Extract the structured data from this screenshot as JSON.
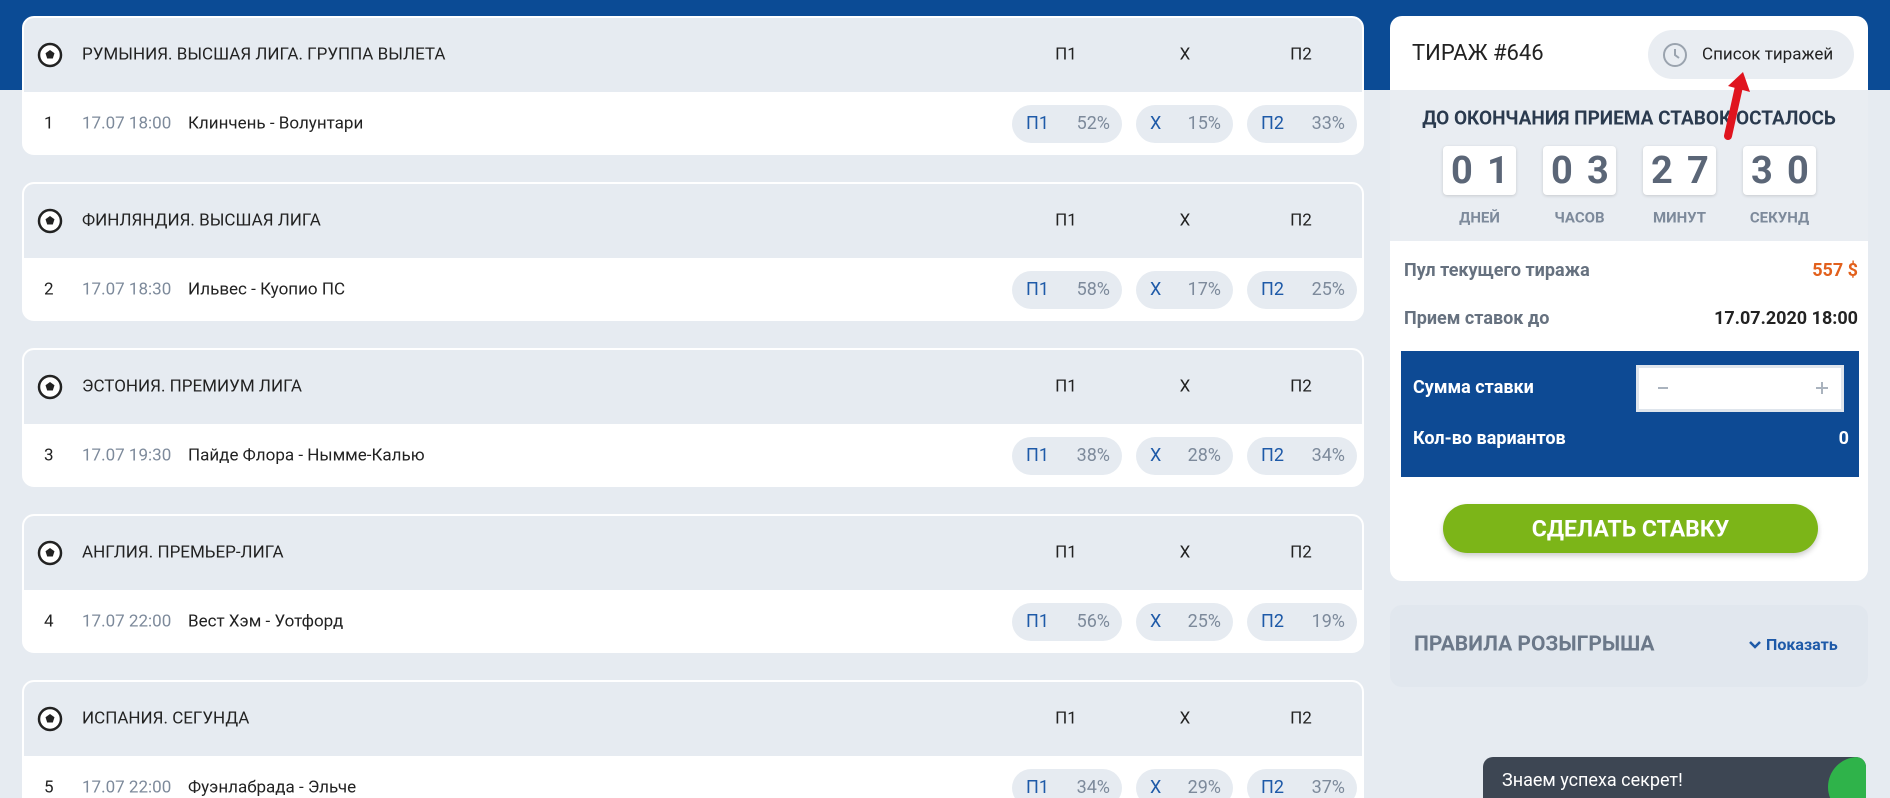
{
  "column_headers": [
    "П1",
    "X",
    "П2"
  ],
  "matches": [
    {
      "league": "РУМЫНИЯ. ВЫСШАЯ ЛИГА. ГРУППА ВЫЛЕТА",
      "number": "1",
      "date": "17.07 18:00",
      "teams": "Клинчень - Волунтари",
      "outcomes": [
        {
          "label": "П1",
          "percent": "52%"
        },
        {
          "label": "X",
          "percent": "15%"
        },
        {
          "label": "П2",
          "percent": "33%"
        }
      ]
    },
    {
      "league": "ФИНЛЯНДИЯ. ВЫСШАЯ ЛИГА",
      "number": "2",
      "date": "17.07 18:30",
      "teams": "Ильвес - Куопио ПС",
      "outcomes": [
        {
          "label": "П1",
          "percent": "58%"
        },
        {
          "label": "X",
          "percent": "17%"
        },
        {
          "label": "П2",
          "percent": "25%"
        }
      ]
    },
    {
      "league": "ЭСТОНИЯ. ПРЕМИУМ ЛИГА",
      "number": "3",
      "date": "17.07 19:30",
      "teams": "Пайде Флора - Нымме-Калью",
      "outcomes": [
        {
          "label": "П1",
          "percent": "38%"
        },
        {
          "label": "X",
          "percent": "28%"
        },
        {
          "label": "П2",
          "percent": "34%"
        }
      ]
    },
    {
      "league": "АНГЛИЯ. ПРЕМЬЕР-ЛИГА",
      "number": "4",
      "date": "17.07 22:00",
      "teams": "Вест Хэм - Уотфорд",
      "outcomes": [
        {
          "label": "П1",
          "percent": "56%"
        },
        {
          "label": "X",
          "percent": "25%"
        },
        {
          "label": "П2",
          "percent": "19%"
        }
      ]
    },
    {
      "league": "ИСПАНИЯ. СЕГУНДА",
      "number": "5",
      "date": "17.07 22:00",
      "teams": "Фуэнлабрада - Эльче",
      "outcomes": [
        {
          "label": "П1",
          "percent": "34%"
        },
        {
          "label": "X",
          "percent": "29%"
        },
        {
          "label": "П2",
          "percent": "37%"
        }
      ]
    }
  ],
  "draw": {
    "title": "ТИРАЖ #646",
    "history_button": "Список тиражей",
    "countdown_title": "ДО ОКОНЧАНИЯ ПРИЕМА СТАВОК ОСТАЛОСЬ",
    "countdown": [
      {
        "digits": [
          "0",
          "1"
        ],
        "unit": "ДНЕЙ"
      },
      {
        "digits": [
          "0",
          "3"
        ],
        "unit": "ЧАСОВ"
      },
      {
        "digits": [
          "2",
          "7"
        ],
        "unit": "МИНУТ"
      },
      {
        "digits": [
          "3",
          "0"
        ],
        "unit": "СЕКУНД"
      }
    ],
    "pool_label": "Пул текущего тиража",
    "pool_value": "557 $",
    "deadline_label": "Прием ставок до",
    "deadline_value": "17.07.2020 18:00",
    "stake_label": "Сумма ставки",
    "variants_label": "Кол-во вариантов",
    "variants_value": "0",
    "submit": "СДЕЛАТЬ СТАВКУ"
  },
  "rules": {
    "title": "ПРАВИЛА РОЗЫГРЫША",
    "toggle": "Показать"
  },
  "chat": {
    "text": "Знаем успеха секрет!"
  }
}
